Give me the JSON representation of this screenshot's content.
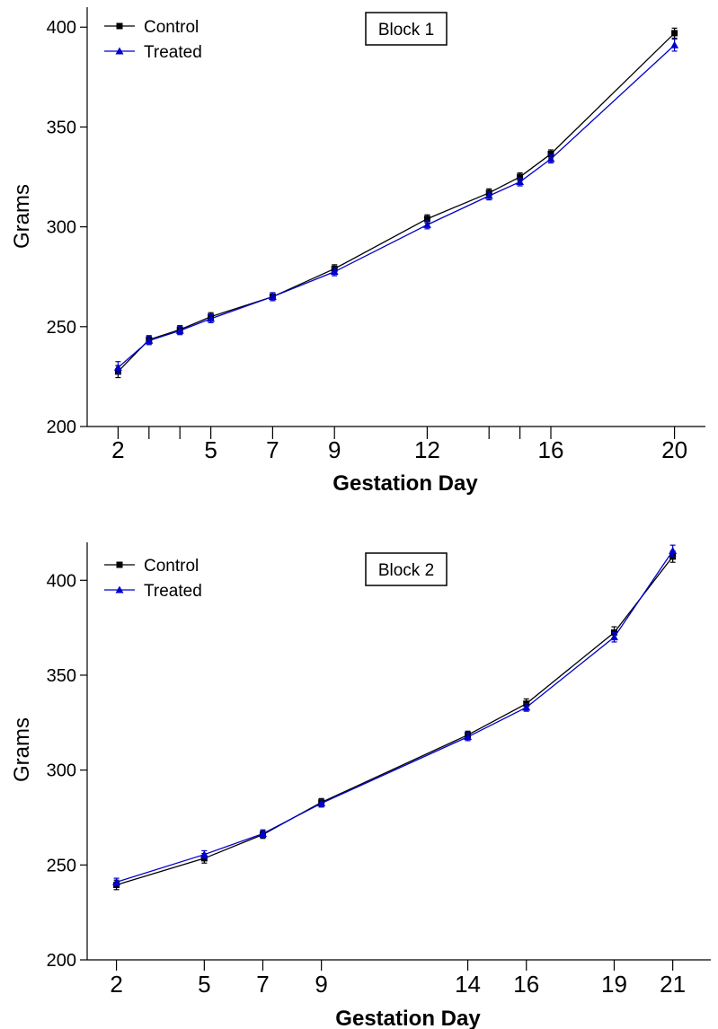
{
  "chart_data": [
    {
      "type": "line",
      "annotation": "Block 1",
      "xlabel": "Gestation Day",
      "ylabel": "Grams",
      "ylim": [
        200,
        420
      ],
      "yticks": [
        200,
        250,
        300,
        350,
        400
      ],
      "xlim": [
        1,
        21
      ],
      "xtick_labels": [
        2,
        5,
        7,
        9,
        12,
        16,
        20
      ],
      "xminor_ticks": [
        3,
        4,
        14,
        15
      ],
      "legend_position": "top-left",
      "grid": false,
      "series": [
        {
          "name": "Control",
          "color": "#000000",
          "marker": "square",
          "points": [
            {
              "x": 2,
              "y": 227.5,
              "err": 3.0
            },
            {
              "x": 3,
              "y": 243.5,
              "err": 2.0
            },
            {
              "x": 4,
              "y": 248.5,
              "err": 2.0
            },
            {
              "x": 5,
              "y": 255.0,
              "err": 2.0
            },
            {
              "x": 7,
              "y": 265.0,
              "err": 2.0
            },
            {
              "x": 9,
              "y": 279.0,
              "err": 2.0
            },
            {
              "x": 12,
              "y": 304.0,
              "err": 2.0
            },
            {
              "x": 14,
              "y": 317.0,
              "err": 2.0
            },
            {
              "x": 15,
              "y": 325.0,
              "err": 2.0
            },
            {
              "x": 16,
              "y": 336.5,
              "err": 2.0
            },
            {
              "x": 20,
              "y": 397.0,
              "err": 2.5
            }
          ]
        },
        {
          "name": "Treated",
          "color": "#0000cc",
          "marker": "triangle",
          "points": [
            {
              "x": 2,
              "y": 229.5,
              "err": 3.0
            },
            {
              "x": 3,
              "y": 243.0,
              "err": 2.0
            },
            {
              "x": 4,
              "y": 248.0,
              "err": 2.0
            },
            {
              "x": 5,
              "y": 254.0,
              "err": 2.0
            },
            {
              "x": 7,
              "y": 265.0,
              "err": 2.0
            },
            {
              "x": 9,
              "y": 277.5,
              "err": 2.0
            },
            {
              "x": 12,
              "y": 301.0,
              "err": 2.0
            },
            {
              "x": 14,
              "y": 315.5,
              "err": 2.0
            },
            {
              "x": 15,
              "y": 322.5,
              "err": 2.0
            },
            {
              "x": 16,
              "y": 334.0,
              "err": 2.0
            },
            {
              "x": 20,
              "y": 391.0,
              "err": 3.0
            }
          ]
        }
      ]
    },
    {
      "type": "line",
      "annotation": "Block 2",
      "xlabel": "Gestation Day",
      "ylabel": "Grams",
      "ylim": [
        200,
        420
      ],
      "yticks": [
        200,
        250,
        300,
        350,
        400
      ],
      "xlim": [
        1,
        21.5
      ],
      "xtick_labels": [
        2,
        5,
        7,
        9,
        14,
        16,
        19,
        21
      ],
      "xminor_ticks": [],
      "legend_position": "top-left",
      "grid": false,
      "series": [
        {
          "name": "Control",
          "color": "#000000",
          "marker": "square",
          "points": [
            {
              "x": 2,
              "y": 239.5,
              "err": 2.5
            },
            {
              "x": 5,
              "y": 253.5,
              "err": 2.5
            },
            {
              "x": 7,
              "y": 266.0,
              "err": 2.0
            },
            {
              "x": 9,
              "y": 283.0,
              "err": 2.0
            },
            {
              "x": 14,
              "y": 318.5,
              "err": 2.0
            },
            {
              "x": 16,
              "y": 335.0,
              "err": 2.5
            },
            {
              "x": 19,
              "y": 372.5,
              "err": 3.0
            },
            {
              "x": 21,
              "y": 412.5,
              "err": 3.0
            }
          ]
        },
        {
          "name": "Treated",
          "color": "#0000cc",
          "marker": "triangle",
          "points": [
            {
              "x": 2,
              "y": 241.0,
              "err": 2.0
            },
            {
              "x": 5,
              "y": 255.5,
              "err": 2.0
            },
            {
              "x": 7,
              "y": 266.5,
              "err": 2.0
            },
            {
              "x": 9,
              "y": 282.5,
              "err": 2.0
            },
            {
              "x": 14,
              "y": 317.5,
              "err": 2.0
            },
            {
              "x": 16,
              "y": 333.0,
              "err": 2.0
            },
            {
              "x": 19,
              "y": 370.0,
              "err": 2.5
            },
            {
              "x": 21,
              "y": 415.5,
              "err": 3.0
            }
          ]
        }
      ]
    }
  ]
}
